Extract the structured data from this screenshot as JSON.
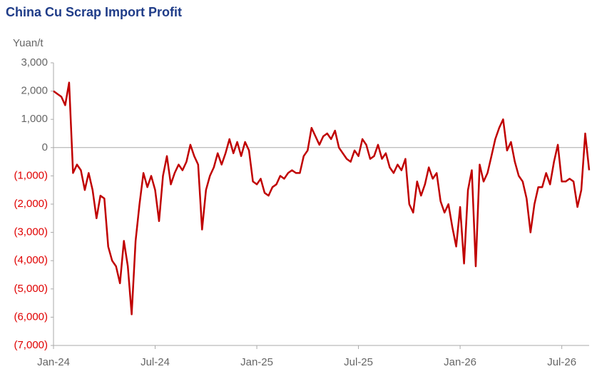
{
  "chart_data": {
    "type": "line",
    "title": "China Cu Scrap Import Profit",
    "y_label": "Yuan/t",
    "color": "#c00000",
    "negative_tick_color": "#e00000",
    "tick_color": "#666666",
    "ylim": [
      -7000,
      3000
    ],
    "yticks": [
      {
        "value": 3000,
        "label": "3,000"
      },
      {
        "value": 2000,
        "label": "2,000"
      },
      {
        "value": 1000,
        "label": "1,000"
      },
      0,
      {
        "value": -1000,
        "label": "(1,000)"
      },
      {
        "value": -2000,
        "label": "(2,000)"
      },
      {
        "value": -3000,
        "label": "(3,000)"
      },
      {
        "value": -4000,
        "label": "(4,000)"
      },
      {
        "value": -5000,
        "label": "(5,000)"
      },
      {
        "value": -6000,
        "label": "(6,000)"
      },
      {
        "value": -7000,
        "label": "(7,000)"
      }
    ],
    "categories": [
      "Jan-24",
      null,
      null,
      null,
      null,
      null,
      null,
      null,
      null,
      null,
      null,
      null,
      null,
      null,
      null,
      null,
      null,
      null,
      null,
      null,
      null,
      null,
      null,
      null,
      null,
      null,
      "Jul-24",
      null,
      null,
      null,
      null,
      null,
      null,
      null,
      null,
      null,
      null,
      null,
      null,
      null,
      null,
      null,
      null,
      null,
      null,
      null,
      null,
      null,
      null,
      null,
      null,
      null,
      "Jan-25",
      null,
      null,
      null,
      null,
      null,
      null,
      null,
      null,
      null,
      null,
      null,
      null,
      null,
      null,
      null,
      null,
      null,
      null,
      null,
      null,
      null,
      null,
      null,
      null,
      null,
      "Jul-25",
      null,
      null,
      null,
      null,
      null,
      null,
      null,
      null,
      null,
      null,
      null,
      null,
      null,
      null,
      null,
      null,
      null,
      null,
      null,
      null,
      null,
      null,
      null,
      null,
      null,
      "Jan-26",
      null,
      null,
      null,
      null,
      null,
      null,
      null,
      null,
      null,
      null,
      null,
      null,
      null,
      null,
      null,
      null,
      null,
      null,
      null,
      null,
      null,
      null,
      null,
      null,
      null,
      "Jul-26",
      null,
      null,
      null,
      null,
      null,
      null,
      null
    ],
    "values": [
      2000,
      1900,
      1800,
      1500,
      2300,
      -900,
      -600,
      -800,
      -1500,
      -900,
      -1500,
      -2500,
      -1700,
      -1800,
      -3500,
      -4000,
      -4200,
      -4800,
      -3300,
      -4200,
      -5900,
      -3300,
      -2000,
      -900,
      -1400,
      -1000,
      -1500,
      -2600,
      -1000,
      -300,
      -1300,
      -900,
      -600,
      -800,
      -500,
      100,
      -300,
      -600,
      -2900,
      -1500,
      -1000,
      -700,
      -200,
      -600,
      -200,
      300,
      -200,
      200,
      -300,
      200,
      -100,
      -1200,
      -1300,
      -1100,
      -1600,
      -1700,
      -1400,
      -1300,
      -1000,
      -1100,
      -900,
      -800,
      -900,
      -900,
      -300,
      -100,
      700,
      400,
      100,
      400,
      500,
      300,
      600,
      0,
      -200,
      -400,
      -500,
      -100,
      -300,
      300,
      100,
      -400,
      -300,
      100,
      -400,
      -200,
      -700,
      -900,
      -600,
      -800,
      -400,
      -2000,
      -2300,
      -1200,
      -1700,
      -1300,
      -700,
      -1100,
      -900,
      -1900,
      -2300,
      -2000,
      -2800,
      -3500,
      -2100,
      -4100,
      -1500,
      -800,
      -4200,
      -600,
      -1200,
      -900,
      -300,
      300,
      700,
      1000,
      -100,
      200,
      -500,
      -1000,
      -1200,
      -1800,
      -3000,
      -2000,
      -1400,
      -1400,
      -900,
      -1300,
      -500,
      100,
      -1200,
      -1200,
      -1100,
      -1200,
      -2100,
      -1500,
      500,
      -800
    ]
  }
}
